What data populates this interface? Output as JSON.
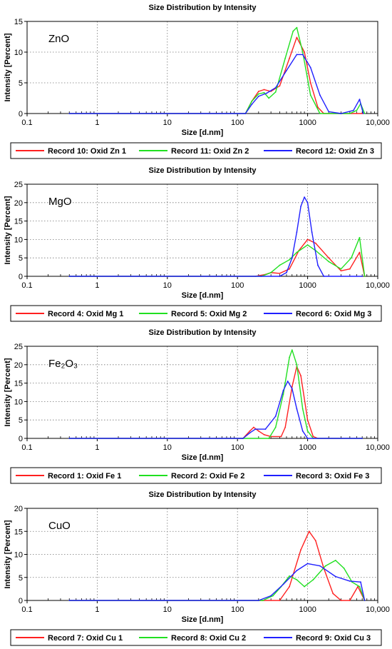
{
  "chart_data": [
    {
      "type": "line",
      "title": "Size Distribution by Intensity",
      "annotation": "ZnO",
      "xlabel": "Size [d.nm]",
      "ylabel": "Intensity [Percent]",
      "x_scale": "log",
      "xlim": [
        0.1,
        10000
      ],
      "ylim": [
        0,
        15
      ],
      "x_ticks": [
        "0.1",
        "1",
        "10",
        "100",
        "1000",
        "10,000"
      ],
      "y_ticks": [
        "0",
        "5",
        "10",
        "15"
      ],
      "grid": true,
      "legend_position": "bottom",
      "series": [
        {
          "name": "Record 10: Oxid Zn 1",
          "color": "#ff2020",
          "points": [
            [
              0.4,
              0
            ],
            [
              130,
              0
            ],
            [
              160,
              2
            ],
            [
              200,
              3.6
            ],
            [
              240,
              3.9
            ],
            [
              300,
              3.6
            ],
            [
              400,
              4.5
            ],
            [
              550,
              9
            ],
            [
              700,
              12.4
            ],
            [
              900,
              10
            ],
            [
              1100,
              5
            ],
            [
              1400,
              1
            ],
            [
              1700,
              0
            ],
            [
              6000,
              0
            ]
          ]
        },
        {
          "name": "Record 11: Oxid Zn 2",
          "color": "#20e020",
          "points": [
            [
              0.4,
              0
            ],
            [
              130,
              0
            ],
            [
              160,
              2
            ],
            [
              200,
              3.2
            ],
            [
              240,
              3.4
            ],
            [
              280,
              2.5
            ],
            [
              350,
              3.5
            ],
            [
              480,
              9
            ],
            [
              620,
              13.4
            ],
            [
              700,
              14
            ],
            [
              850,
              10
            ],
            [
              1100,
              3
            ],
            [
              1500,
              0
            ],
            [
              4000,
              0
            ],
            [
              5000,
              0.5
            ],
            [
              5700,
              1.6
            ],
            [
              6500,
              0
            ]
          ]
        },
        {
          "name": "Record 12: Oxid Zn 3",
          "color": "#2020ff",
          "points": [
            [
              0.4,
              0
            ],
            [
              130,
              0
            ],
            [
              160,
              1.5
            ],
            [
              200,
              2.8
            ],
            [
              260,
              3.3
            ],
            [
              350,
              4.2
            ],
            [
              500,
              7
            ],
            [
              700,
              9.6
            ],
            [
              850,
              9.6
            ],
            [
              1100,
              7.5
            ],
            [
              1500,
              3
            ],
            [
              2000,
              0.3
            ],
            [
              3000,
              0
            ],
            [
              4500,
              0.5
            ],
            [
              5500,
              2.3
            ],
            [
              6200,
              0
            ]
          ]
        }
      ]
    },
    {
      "type": "line",
      "title": "Size Distribution by Intensity",
      "annotation": "MgO",
      "xlabel": "Size [d.nm]",
      "ylabel": "Intensity [Percent]",
      "x_scale": "log",
      "xlim": [
        0.1,
        10000
      ],
      "ylim": [
        0,
        25
      ],
      "x_ticks": [
        "0.1",
        "1",
        "10",
        "100",
        "1000",
        "10,000"
      ],
      "y_ticks": [
        "0",
        "5",
        "10",
        "15",
        "20",
        "25"
      ],
      "grid": true,
      "legend_position": "bottom",
      "series": [
        {
          "name": "Record 4: Oxid Mg 1",
          "color": "#ff2020",
          "points": [
            [
              0.4,
              0
            ],
            [
              180,
              0
            ],
            [
              250,
              0.5
            ],
            [
              300,
              1
            ],
            [
              400,
              0.8
            ],
            [
              550,
              2
            ],
            [
              750,
              7
            ],
            [
              1000,
              10
            ],
            [
              1300,
              9
            ],
            [
              2000,
              5
            ],
            [
              3000,
              1.5
            ],
            [
              4000,
              2
            ],
            [
              5500,
              6.5
            ],
            [
              6500,
              0
            ]
          ]
        },
        {
          "name": "Record 5: Oxid Mg 2",
          "color": "#20e020",
          "points": [
            [
              0.4,
              0
            ],
            [
              220,
              0
            ],
            [
              300,
              1
            ],
            [
              400,
              3
            ],
            [
              550,
              4.5
            ],
            [
              700,
              6.5
            ],
            [
              1000,
              8.5
            ],
            [
              1300,
              7
            ],
            [
              2000,
              4
            ],
            [
              3000,
              2
            ],
            [
              4200,
              5
            ],
            [
              5500,
              10.5
            ],
            [
              6500,
              0
            ]
          ]
        },
        {
          "name": "Record 6: Oxid Mg 3",
          "color": "#2020ff",
          "points": [
            [
              0.4,
              0
            ],
            [
              400,
              0
            ],
            [
              500,
              1
            ],
            [
              600,
              5
            ],
            [
              700,
              12
            ],
            [
              800,
              19
            ],
            [
              900,
              21.5
            ],
            [
              1000,
              20
            ],
            [
              1150,
              12
            ],
            [
              1400,
              3
            ],
            [
              1700,
              0
            ],
            [
              6000,
              0
            ]
          ]
        }
      ]
    },
    {
      "type": "line",
      "title": "Size Distribution by Intensity",
      "annotation": "Fe₂O₃",
      "xlabel": "Size [d.nm]",
      "ylabel": "Intensity [Percent]",
      "x_scale": "log",
      "xlim": [
        0.1,
        10000
      ],
      "ylim": [
        0,
        25
      ],
      "x_ticks": [
        "0.1",
        "1",
        "10",
        "100",
        "1000",
        "10,000"
      ],
      "y_ticks": [
        "0",
        "5",
        "10",
        "15",
        "20",
        "25"
      ],
      "grid": true,
      "legend_position": "bottom",
      "series": [
        {
          "name": "Record 1: Oxid Fe 1",
          "color": "#ff2020",
          "points": [
            [
              0.4,
              0
            ],
            [
              120,
              0
            ],
            [
              150,
              2
            ],
            [
              170,
              3
            ],
            [
              200,
              2
            ],
            [
              240,
              1
            ],
            [
              300,
              0.5
            ],
            [
              420,
              0.5
            ],
            [
              480,
              3
            ],
            [
              600,
              14
            ],
            [
              700,
              19.5
            ],
            [
              800,
              17
            ],
            [
              1000,
              5
            ],
            [
              1200,
              0.5
            ],
            [
              1400,
              0
            ],
            [
              6000,
              0
            ]
          ]
        },
        {
          "name": "Record 2: Oxid Fe 2",
          "color": "#20e020",
          "points": [
            [
              0.4,
              0
            ],
            [
              280,
              0
            ],
            [
              350,
              3
            ],
            [
              450,
              12
            ],
            [
              550,
              22
            ],
            [
              600,
              24
            ],
            [
              700,
              20
            ],
            [
              850,
              8
            ],
            [
              1000,
              2
            ],
            [
              1200,
              0
            ],
            [
              6000,
              0
            ]
          ]
        },
        {
          "name": "Record 3: Oxid Fe 3",
          "color": "#2020ff",
          "points": [
            [
              0.4,
              0
            ],
            [
              120,
              0
            ],
            [
              150,
              1.5
            ],
            [
              180,
              2.5
            ],
            [
              250,
              2.5
            ],
            [
              350,
              6
            ],
            [
              450,
              13
            ],
            [
              520,
              15.5
            ],
            [
              600,
              13.5
            ],
            [
              700,
              8
            ],
            [
              850,
              2
            ],
            [
              1000,
              0
            ],
            [
              6000,
              0
            ]
          ]
        }
      ]
    },
    {
      "type": "line",
      "title": "Size Distribution by Intensity",
      "annotation": "CuO",
      "xlabel": "Size [d.nm]",
      "ylabel": "Intensity [Percent]",
      "x_scale": "log",
      "xlim": [
        0.1,
        10000
      ],
      "ylim": [
        0,
        20
      ],
      "x_ticks": [
        "0.1",
        "1",
        "10",
        "100",
        "1000",
        "10,000"
      ],
      "y_ticks": [
        "0",
        "5",
        "10",
        "15",
        "20"
      ],
      "grid": true,
      "legend_position": "bottom",
      "series": [
        {
          "name": "Record 7: Oxid Cu 1",
          "color": "#ff2020",
          "points": [
            [
              0.4,
              0
            ],
            [
              400,
              0
            ],
            [
              550,
              3
            ],
            [
              800,
              11
            ],
            [
              1050,
              15
            ],
            [
              1300,
              13
            ],
            [
              1700,
              7
            ],
            [
              2300,
              1.5
            ],
            [
              3000,
              0
            ],
            [
              4000,
              0
            ],
            [
              5200,
              3
            ],
            [
              6500,
              0
            ]
          ]
        },
        {
          "name": "Record 8: Oxid Cu 2",
          "color": "#20e020",
          "points": [
            [
              0.4,
              0
            ],
            [
              230,
              0
            ],
            [
              320,
              1
            ],
            [
              420,
              3
            ],
            [
              550,
              5.3
            ],
            [
              700,
              4.5
            ],
            [
              900,
              3
            ],
            [
              1200,
              4.5
            ],
            [
              1800,
              7.5
            ],
            [
              2500,
              8.7
            ],
            [
              3300,
              7
            ],
            [
              4300,
              4
            ],
            [
              5500,
              3
            ],
            [
              6500,
              0
            ]
          ]
        },
        {
          "name": "Record 9: Oxid Cu 3",
          "color": "#2020ff",
          "points": [
            [
              0.4,
              0
            ],
            [
              200,
              0
            ],
            [
              300,
              1
            ],
            [
              450,
              3.5
            ],
            [
              700,
              6.5
            ],
            [
              1000,
              8
            ],
            [
              1500,
              7.5
            ],
            [
              2500,
              5.2
            ],
            [
              4000,
              4.2
            ],
            [
              5700,
              4
            ],
            [
              6500,
              0
            ]
          ]
        }
      ]
    }
  ]
}
